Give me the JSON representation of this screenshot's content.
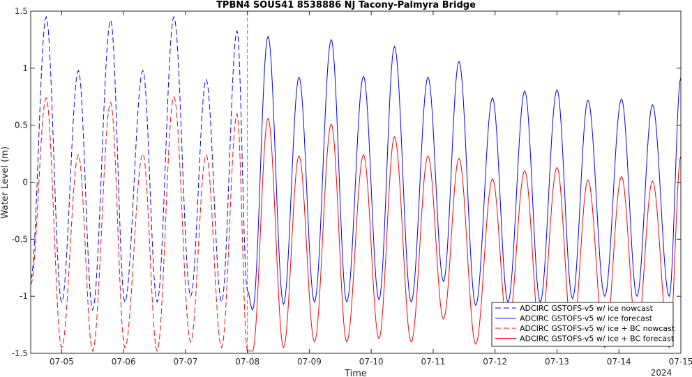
{
  "chart_data": {
    "type": "line",
    "title": "TPBN4 SOUS41 8538886 NJ Tacony-Palmyra Bridge",
    "xlabel": "Time",
    "ylabel": "Water Level (m)",
    "year_label": "2024",
    "xlim": [
      "2024-07-04T12:00",
      "2024-07-15T00:00"
    ],
    "ylim": [
      -1.5,
      1.5
    ],
    "x_ticks": [
      "07-05",
      "07-06",
      "07-07",
      "07-08",
      "07-09",
      "07-10",
      "07-11",
      "07-12",
      "07-13",
      "07-14",
      "07-15"
    ],
    "y_ticks": [
      "-1.5",
      "-1",
      "-0.5",
      "0",
      "0.5",
      "1",
      "1.5"
    ],
    "forecast_start": "2024-07-08T00:00",
    "grid": false,
    "legend_position": "bottom-right",
    "colors": {
      "blue": "#0000ff",
      "red": "#ff0000",
      "divider": "#7f7f7f"
    },
    "series": [
      {
        "name": "ADCIRC GSTOFS-v5 w/ ice nowcast",
        "color": "#0000ff",
        "style": "dashed",
        "x": [
          "2024-07-04T12:00",
          "2024-07-04T18:00",
          "2024-07-05T00:00",
          "2024-07-05T06:30",
          "2024-07-05T12:00",
          "2024-07-05T19:00",
          "2024-07-06T00:30",
          "2024-07-06T07:30",
          "2024-07-06T13:00",
          "2024-07-06T19:30",
          "2024-07-07T02:00",
          "2024-07-07T08:00",
          "2024-07-07T14:00",
          "2024-07-07T20:00",
          "2024-07-08T00:00"
        ],
        "y": [
          -0.85,
          1.45,
          -1.05,
          0.98,
          -1.12,
          1.42,
          -1.05,
          0.98,
          -1.05,
          1.45,
          -1.0,
          0.9,
          -1.05,
          1.33,
          -0.95
        ]
      },
      {
        "name": "ADCIRC GSTOFS-v5 w/ ice forecast",
        "color": "#0000ff",
        "style": "solid",
        "x": [
          "2024-07-08T00:00",
          "2024-07-08T02:00",
          "2024-07-08T08:00",
          "2024-07-08T14:00",
          "2024-07-08T20:00",
          "2024-07-09T02:00",
          "2024-07-09T08:30",
          "2024-07-09T14:30",
          "2024-07-09T21:00",
          "2024-07-10T03:00",
          "2024-07-10T09:00",
          "2024-07-10T15:30",
          "2024-07-10T22:00",
          "2024-07-11T04:00",
          "2024-07-11T10:00",
          "2024-07-11T16:30",
          "2024-07-11T23:00",
          "2024-07-12T05:00",
          "2024-07-12T11:30",
          "2024-07-12T17:30",
          "2024-07-13T00:00",
          "2024-07-13T06:00",
          "2024-07-13T12:00",
          "2024-07-13T18:30",
          "2024-07-14T01:00",
          "2024-07-14T07:00",
          "2024-07-14T13:00",
          "2024-07-14T19:30",
          "2024-07-15T00:00"
        ],
        "y": [
          -0.95,
          -1.12,
          1.28,
          -1.07,
          0.92,
          -1.05,
          1.25,
          -1.05,
          0.93,
          -1.03,
          1.19,
          -1.05,
          0.92,
          -0.87,
          1.06,
          -1.08,
          0.74,
          -1.05,
          0.8,
          -1.05,
          0.81,
          -1.02,
          0.72,
          -1.0,
          0.73,
          -1.0,
          0.68,
          -1.0,
          0.92
        ]
      },
      {
        "name": "ADCIRC GSTOFS-v5 w/ ice + BC nowcast",
        "color": "#ff0000",
        "style": "dashed",
        "x": [
          "2024-07-04T12:00",
          "2024-07-04T18:00",
          "2024-07-05T00:00",
          "2024-07-05T06:30",
          "2024-07-05T12:00",
          "2024-07-05T19:00",
          "2024-07-06T00:30",
          "2024-07-06T07:30",
          "2024-07-06T13:00",
          "2024-07-06T19:30",
          "2024-07-07T02:00",
          "2024-07-07T08:00",
          "2024-07-07T14:00",
          "2024-07-07T20:00",
          "2024-07-08T00:00"
        ],
        "y": [
          -0.9,
          0.74,
          -1.45,
          0.24,
          -1.48,
          0.7,
          -1.45,
          0.25,
          -1.48,
          0.75,
          -1.4,
          0.24,
          -1.45,
          0.6,
          -1.48
        ]
      },
      {
        "name": "ADCIRC GSTOFS-v5 w/ ice + BC forecast",
        "color": "#ff0000",
        "style": "solid",
        "x": [
          "2024-07-08T00:00",
          "2024-07-08T02:00",
          "2024-07-08T08:00",
          "2024-07-08T14:00",
          "2024-07-08T20:00",
          "2024-07-09T02:00",
          "2024-07-09T08:30",
          "2024-07-09T14:30",
          "2024-07-09T21:00",
          "2024-07-10T03:00",
          "2024-07-10T09:00",
          "2024-07-10T15:30",
          "2024-07-10T22:00",
          "2024-07-11T04:00",
          "2024-07-11T10:00",
          "2024-07-11T16:30",
          "2024-07-11T23:00",
          "2024-07-12T05:00",
          "2024-07-12T11:30",
          "2024-07-12T17:30",
          "2024-07-13T00:00",
          "2024-07-13T06:00",
          "2024-07-13T12:00",
          "2024-07-13T18:30",
          "2024-07-14T01:00",
          "2024-07-14T07:00",
          "2024-07-14T13:00",
          "2024-07-14T19:30",
          "2024-07-15T00:00"
        ],
        "y": [
          -1.48,
          -1.48,
          0.56,
          -1.45,
          0.23,
          -1.4,
          0.51,
          -1.4,
          0.24,
          -1.37,
          0.4,
          -1.4,
          0.23,
          -1.2,
          0.21,
          -1.42,
          0.03,
          -1.3,
          0.1,
          -1.35,
          0.13,
          -1.38,
          0.02,
          -1.45,
          0.05,
          -1.35,
          0.01,
          -1.45,
          0.23
        ]
      }
    ]
  }
}
